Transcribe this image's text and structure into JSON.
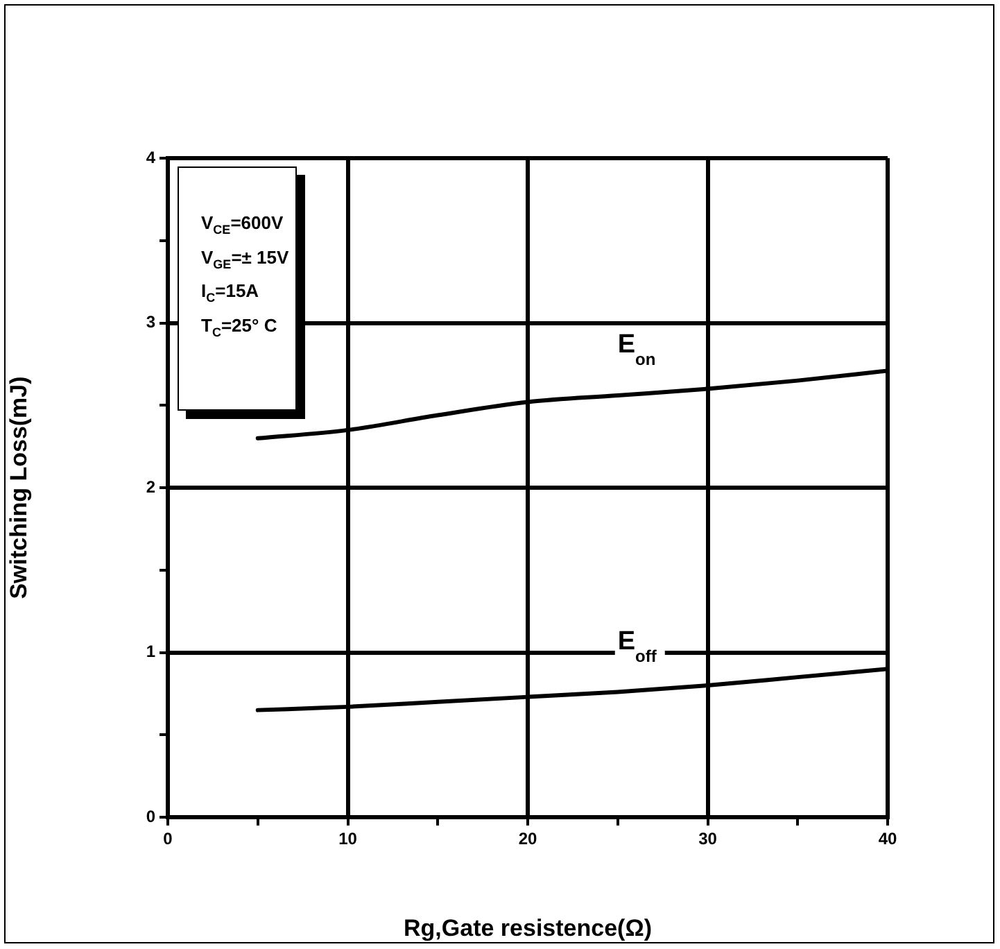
{
  "chart_data": {
    "type": "line",
    "xlabel": "Rg,Gate resistence(Ω)",
    "ylabel": "Switching Loss(mJ)",
    "series": [
      {
        "name": "E$_{on}$",
        "color": "#000000",
        "x": [
          5,
          10,
          15,
          20,
          25,
          30,
          35,
          40
        ],
        "values": [
          2.3,
          2.35,
          2.44,
          2.52,
          2.56,
          2.6,
          2.65,
          2.71
        ]
      },
      {
        "name": "E$_{off}$",
        "color": "#000000",
        "x": [
          5,
          10,
          15,
          20,
          25,
          30,
          35,
          40
        ],
        "values": [
          0.65,
          0.67,
          0.7,
          0.73,
          0.76,
          0.8,
          0.85,
          0.9
        ]
      }
    ],
    "xlim": [
      0,
      40
    ],
    "ylim": [
      0,
      4
    ],
    "xticks": [
      0,
      {
        "value": 5,
        "label": null
      },
      10,
      {
        "value": 15,
        "label": null
      },
      20,
      {
        "value": 25,
        "label": null
      },
      30,
      {
        "value": 35,
        "label": null
      },
      40
    ],
    "yticks": [
      0,
      {
        "value": 0.5,
        "label": null
      },
      1,
      {
        "value": 1.5,
        "label": null
      },
      2,
      {
        "value": 2.5,
        "label": null
      },
      3,
      {
        "value": 3.5,
        "label": null
      },
      4
    ],
    "grid": true,
    "legend": false,
    "marker": "none",
    "line_style": "solid",
    "annotations": [
      "V$_{CE}$=600V",
      "V$_{GE}$=± 15V",
      "I$_{C}$=15A",
      "T$_{C}$=25° C"
    ]
  }
}
